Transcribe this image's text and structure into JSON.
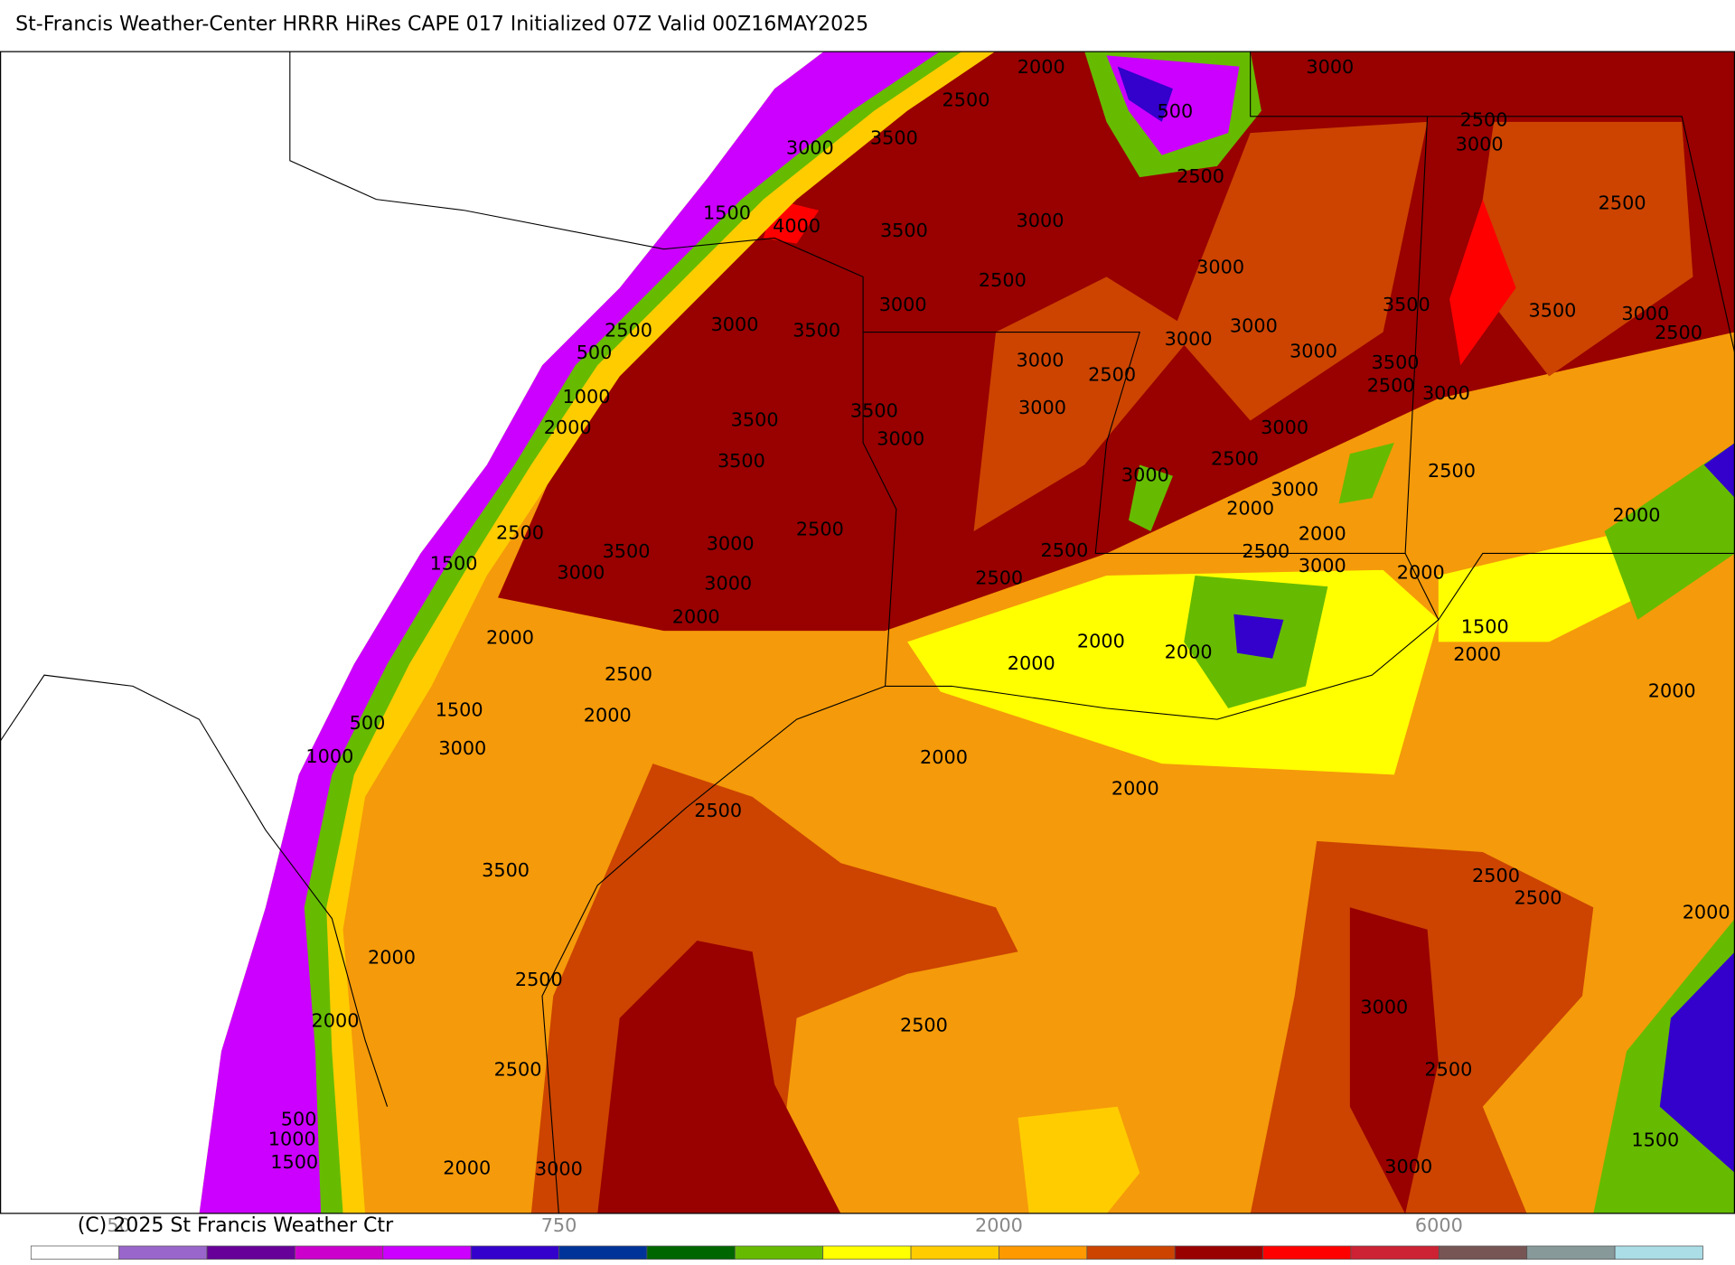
{
  "header": {
    "title": "St-Francis Weather-Center HRRR HiRes CAPE  017 Initialized  07Z Valid 00Z16MAY2025"
  },
  "map": {
    "contour_labels": [
      2000,
      3000,
      2500,
      500,
      2500,
      3000,
      3000,
      3500,
      2500,
      2500,
      1500,
      4000,
      3500,
      3000,
      3000,
      2500,
      3000,
      3500,
      3500,
      3000,
      2500,
      2500,
      3000,
      3500,
      3000,
      3000,
      3000,
      500,
      3000,
      2500,
      3500,
      2500,
      3000,
      1000,
      3000,
      3500,
      3500,
      2000,
      3000,
      3000,
      3500,
      2500,
      3000,
      3000,
      2500,
      2000,
      2000,
      2500,
      2500,
      2000,
      3000,
      1500,
      3500,
      3000,
      2500,
      2500,
      3000,
      2000,
      3000,
      2500,
      2000,
      2000,
      2000,
      2000,
      1500,
      2000,
      2000,
      2500,
      1500,
      2000,
      2000,
      500,
      3000,
      1000,
      2000,
      2000,
      2500,
      3500,
      2500,
      2500,
      2000,
      2000,
      2500,
      2000,
      2500,
      3000,
      2500,
      2500,
      500,
      1000,
      1500,
      1500,
      2000,
      3000,
      3000
    ]
  },
  "colorbar": {
    "colors": [
      "#ffffff",
      "#9966cc",
      "#660099",
      "#cc00cc",
      "#cc00ff",
      "#3300cc",
      "#003399",
      "#006600",
      "#66bb00",
      "#ffff00",
      "#ffcc00",
      "#ff9900",
      "#cc4400",
      "#990000",
      "#ff0000",
      "#cc2233",
      "#775555",
      "#88999a",
      "#aadde6"
    ],
    "labels": [
      50,
      750,
      2000,
      6000
    ]
  },
  "footer": {
    "copyright": "(C) 2025 St Francis Weather Ctr"
  }
}
